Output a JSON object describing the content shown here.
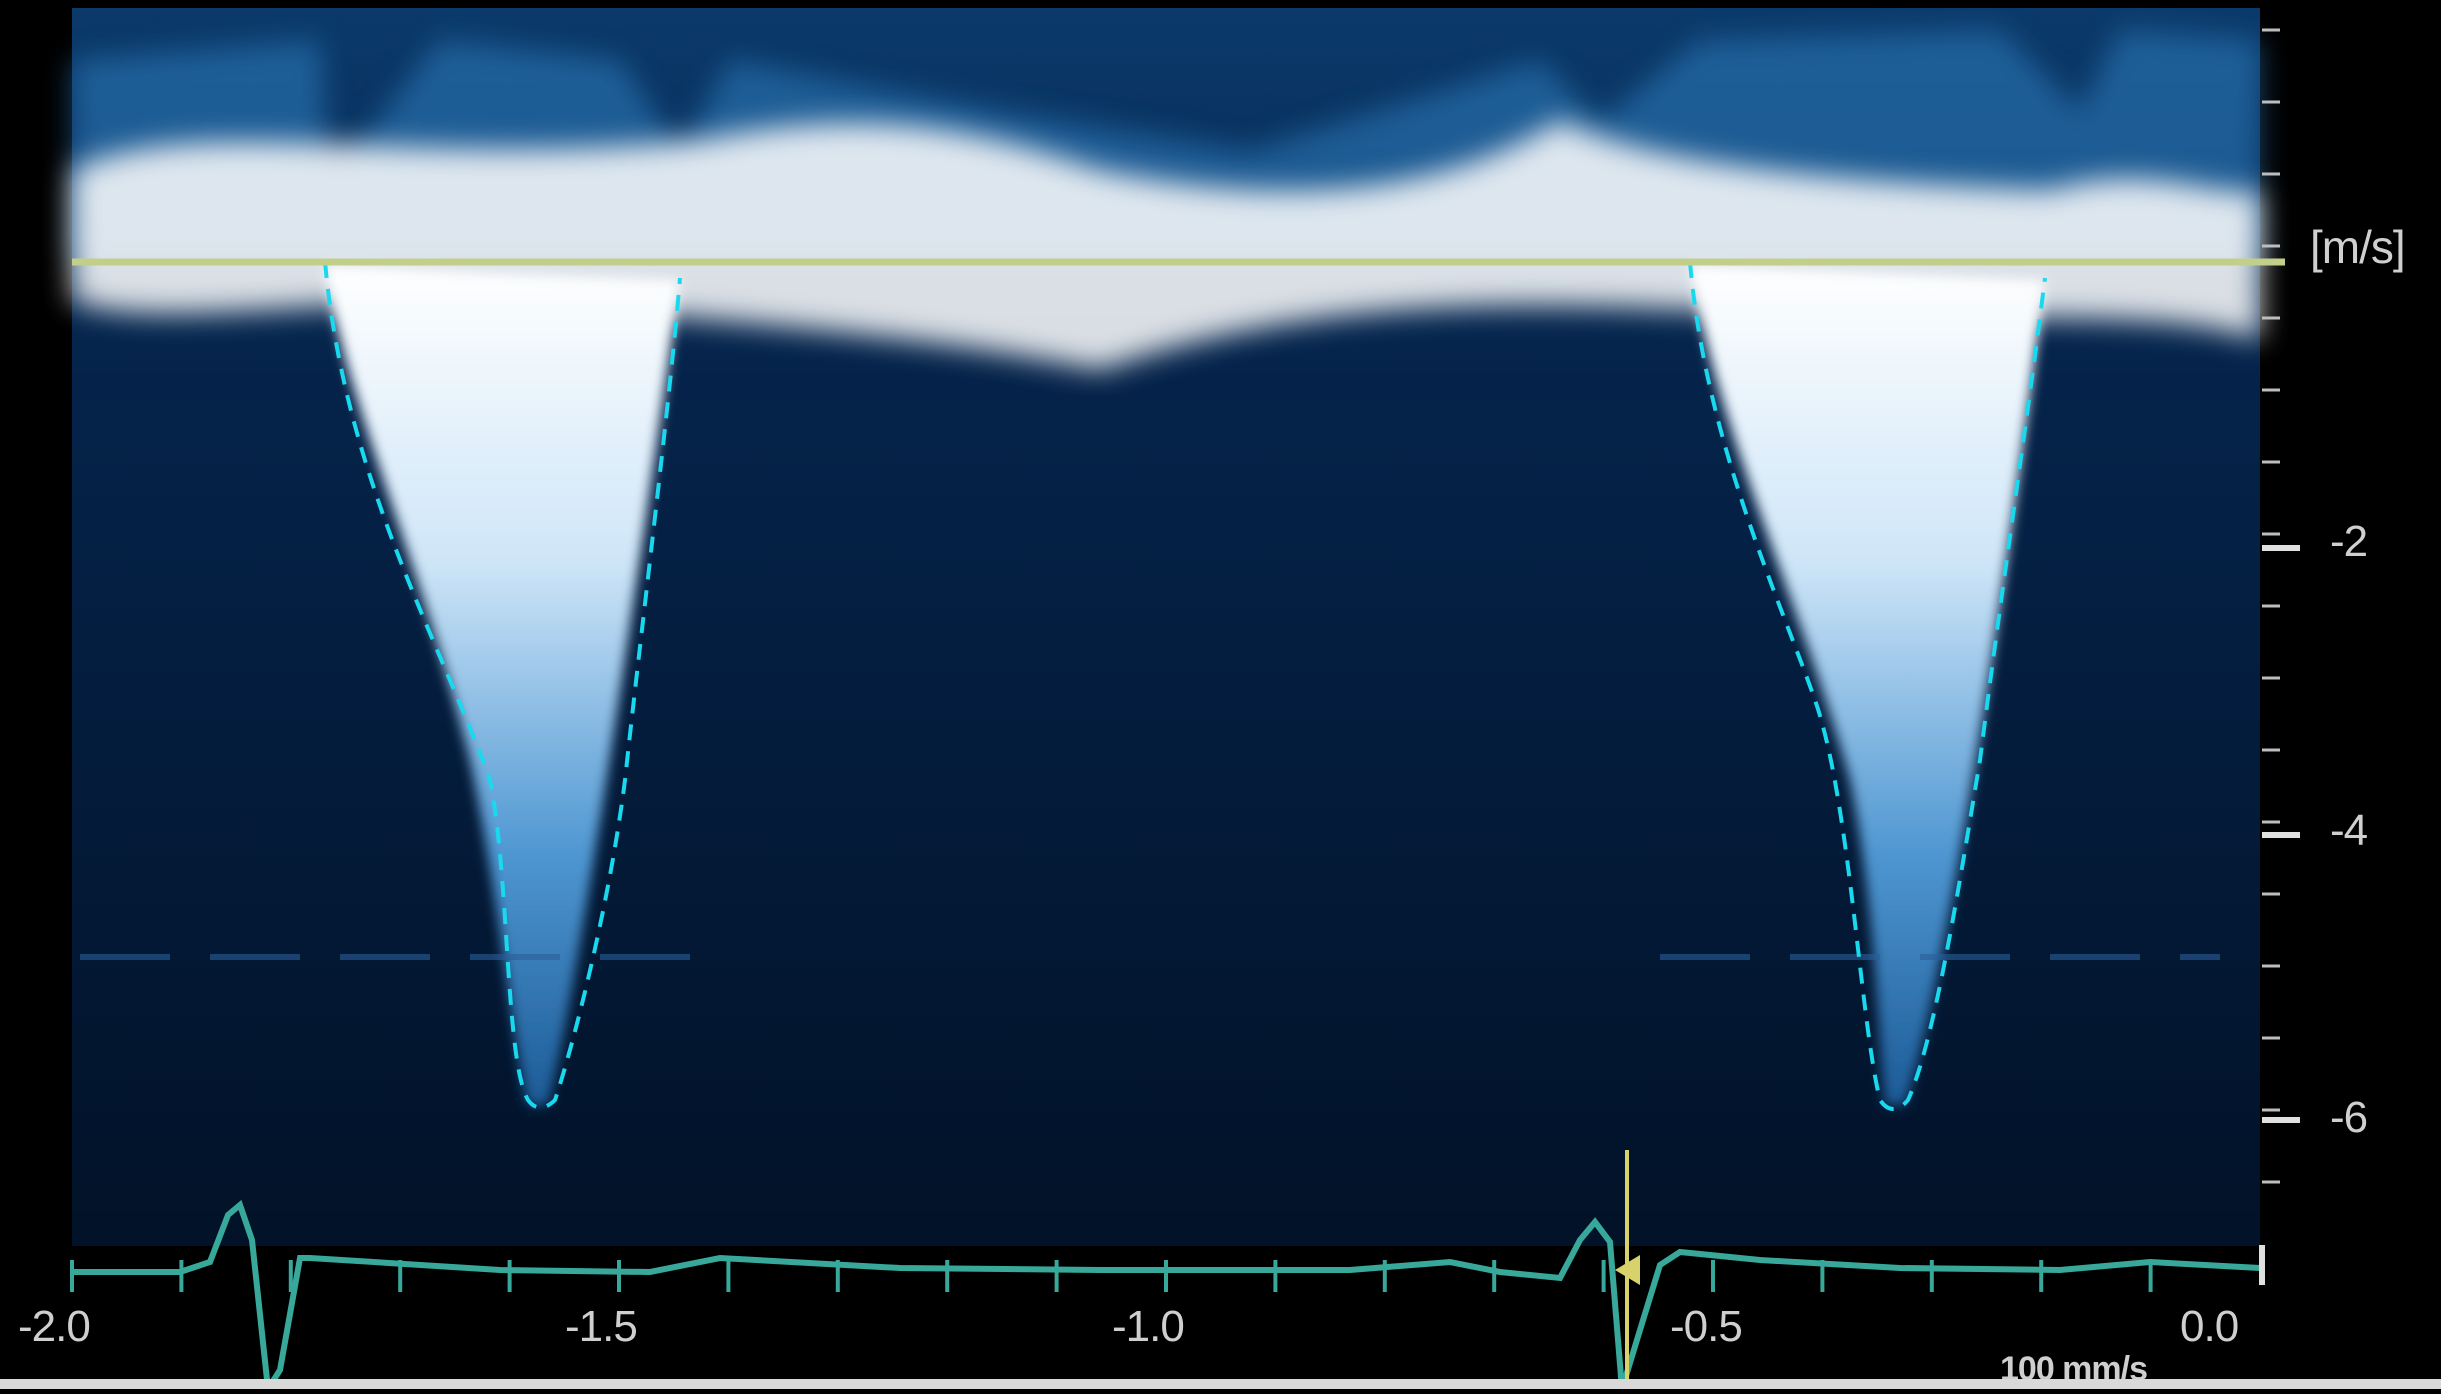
{
  "velocity_scale": {
    "unit": "[m/s]",
    "ticks": [
      "-2",
      "-4",
      "-6"
    ]
  },
  "time_axis": {
    "ticks": [
      "-2.0",
      "-1.5",
      "-1.0",
      "-0.5",
      "0.0"
    ]
  },
  "sweep_speed": "100 mm/s",
  "colors": {
    "background": "#000000",
    "doppler_dark": "#06203f",
    "doppler_mid": "#2f7fc0",
    "doppler_bright": "#ffffff",
    "baseline": "#c2cf8a",
    "trace_outline": "#19d9ee",
    "ecg": "#37a89a",
    "tick_marks": "#d6d6d6"
  }
}
